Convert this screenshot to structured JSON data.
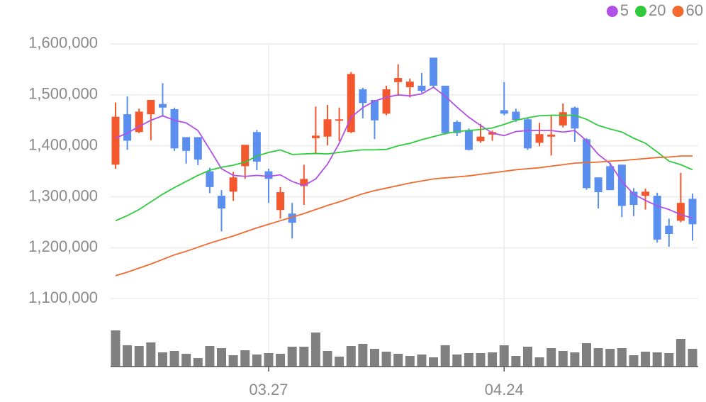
{
  "chart_data": {
    "type": "candlestick",
    "categories": [
      null,
      null,
      null,
      null,
      null,
      null,
      null,
      null,
      null,
      null,
      null,
      null,
      null,
      "03.27",
      null,
      null,
      null,
      null,
      null,
      null,
      null,
      null,
      null,
      null,
      null,
      null,
      null,
      null,
      null,
      null,
      null,
      null,
      null,
      "04.24",
      null,
      null,
      null,
      null,
      null,
      null,
      null,
      null,
      null,
      null,
      null,
      null,
      null,
      null,
      null,
      null
    ],
    "open": [
      1363000,
      1462000,
      1427000,
      1462000,
      1482000,
      1472000,
      1417000,
      1417000,
      1350000,
      1302000,
      1310000,
      1360000,
      1427000,
      1350000,
      1274000,
      1267000,
      1321000,
      1415000,
      1418000,
      1450000,
      1427000,
      1511000,
      1490000,
      1463000,
      1525000,
      1515000,
      1518000,
      1573000,
      1518000,
      1447000,
      1431000,
      1409000,
      1422000,
      1470000,
      1467000,
      1452000,
      1406000,
      1418000,
      1440000,
      1475000,
      1413000,
      1338000,
      1360000,
      1363000,
      1310000,
      1302000,
      1302000,
      1243000,
      1253000,
      1296000
    ],
    "high": [
      1485000,
      1497000,
      1473000,
      1490000,
      1523000,
      1475000,
      1417000,
      1417000,
      1357000,
      1313000,
      1349000,
      1402000,
      1431000,
      1355000,
      1319000,
      1288000,
      1363000,
      1477000,
      1480000,
      1475000,
      1545000,
      1514000,
      1490000,
      1518000,
      1560000,
      1532000,
      1543000,
      1573000,
      1518000,
      1450000,
      1434000,
      1443000,
      1430000,
      1525000,
      1473000,
      1455000,
      1445000,
      1459000,
      1483000,
      1477000,
      1415000,
      1338000,
      1367000,
      1363000,
      1317000,
      1316000,
      1308000,
      1257000,
      1347000,
      1306000
    ],
    "low": [
      1355000,
      1392000,
      1425000,
      1411000,
      1457000,
      1390000,
      1365000,
      1362000,
      1307000,
      1232000,
      1292000,
      1335000,
      1352000,
      1288000,
      1257000,
      1218000,
      1284000,
      1385000,
      1401000,
      1409000,
      1425000,
      1454000,
      1413000,
      1460000,
      1498000,
      1495000,
      1504000,
      1515000,
      1422000,
      1419000,
      1391000,
      1406000,
      1410000,
      1460000,
      1447000,
      1392000,
      1399000,
      1381000,
      1436000,
      1408000,
      1314000,
      1277000,
      1313000,
      1260000,
      1262000,
      1275000,
      1210000,
      1202000,
      1250000,
      1214000
    ],
    "close": [
      1457000,
      1410000,
      1467000,
      1490000,
      1475000,
      1395000,
      1390000,
      1373000,
      1319000,
      1277000,
      1338000,
      1402000,
      1369000,
      1335000,
      1309000,
      1249000,
      1335000,
      1420000,
      1452000,
      1452000,
      1541000,
      1484000,
      1450000,
      1511000,
      1533000,
      1526000,
      1508000,
      1518000,
      1425000,
      1425000,
      1392000,
      1418000,
      1427000,
      1463000,
      1451000,
      1395000,
      1423000,
      1422000,
      1466000,
      1434000,
      1317000,
      1309000,
      1313000,
      1282000,
      1284000,
      1310000,
      1216000,
      1227000,
      1288000,
      1246000
    ],
    "up_color": "#f2572e",
    "down_color": "#5a8ff0",
    "series": [
      {
        "name": "5",
        "color": "#b150e8",
        "values": [
          1415000,
          1425000,
          1438000,
          1450000,
          1459000,
          1450000,
          1445000,
          1430000,
          1393000,
          1355000,
          1342000,
          1340000,
          1342000,
          1340000,
          1343000,
          1330000,
          1322000,
          1335000,
          1364000,
          1405000,
          1456000,
          1475000,
          1488000,
          1495000,
          1500000,
          1498000,
          1502000,
          1515000,
          1497000,
          1476000,
          1456000,
          1440000,
          1425000,
          1420000,
          1428000,
          1430000,
          1430000,
          1430000,
          1427000,
          1430000,
          1410000,
          1383000,
          1365000,
          1330000,
          1305000,
          1293000,
          1282000,
          1275000,
          1265000,
          1258000
        ]
      },
      {
        "name": "20",
        "color": "#2fcb3c",
        "values": [
          1253000,
          1263000,
          1275000,
          1290000,
          1305000,
          1318000,
          1330000,
          1342000,
          1352000,
          1358000,
          1362000,
          1368000,
          1380000,
          1387000,
          1392000,
          1383000,
          1384000,
          1385000,
          1384000,
          1387000,
          1390000,
          1392000,
          1392000,
          1393000,
          1400000,
          1405000,
          1412000,
          1418000,
          1424000,
          1428000,
          1430000,
          1432000,
          1435000,
          1442000,
          1450000,
          1455000,
          1459000,
          1460000,
          1460000,
          1460000,
          1452000,
          1440000,
          1433000,
          1427000,
          1415000,
          1405000,
          1388000,
          1370000,
          1363000,
          1353000
        ]
      },
      {
        "name": "60",
        "color": "#f26a2f",
        "values": [
          1145000,
          1152000,
          1160000,
          1168000,
          1177000,
          1186000,
          1193000,
          1201000,
          1209000,
          1216000,
          1223000,
          1231000,
          1239000,
          1246000,
          1253000,
          1260000,
          1267000,
          1275000,
          1283000,
          1290000,
          1298000,
          1306000,
          1312000,
          1317000,
          1322000,
          1327000,
          1331000,
          1335000,
          1337000,
          1339000,
          1341000,
          1344000,
          1347000,
          1350000,
          1353000,
          1355000,
          1357000,
          1360000,
          1363000,
          1366000,
          1367000,
          1368000,
          1370000,
          1371000,
          1373000,
          1375000,
          1377000,
          1378000,
          1380000,
          1380000
        ]
      }
    ],
    "volume": {
      "color": "#808080",
      "ylim": [
        0,
        55
      ],
      "values": [
        51,
        30,
        29,
        34,
        20,
        22,
        18,
        12,
        29,
        26,
        16,
        23,
        17,
        19,
        18,
        28,
        28,
        48,
        22,
        14,
        29,
        32,
        25,
        21,
        18,
        15,
        17,
        13,
        30,
        17,
        19,
        19,
        20,
        30,
        15,
        28,
        13,
        26,
        22,
        20,
        33,
        26,
        25,
        26,
        16,
        21,
        20,
        19,
        39,
        25
      ]
    },
    "ylim": [
      1060000,
      1650000
    ],
    "yticks": [
      {
        "value": 1100000,
        "label": "1,100,000"
      },
      {
        "value": 1200000,
        "label": "1,200,000"
      },
      {
        "value": 1300000,
        "label": "1,300,000"
      },
      {
        "value": 1400000,
        "label": "1,400,000"
      },
      {
        "value": 1500000,
        "label": "1,500,000"
      },
      {
        "value": 1600000,
        "label": "1,600,000"
      }
    ],
    "grid": true,
    "legend": "top-right"
  }
}
